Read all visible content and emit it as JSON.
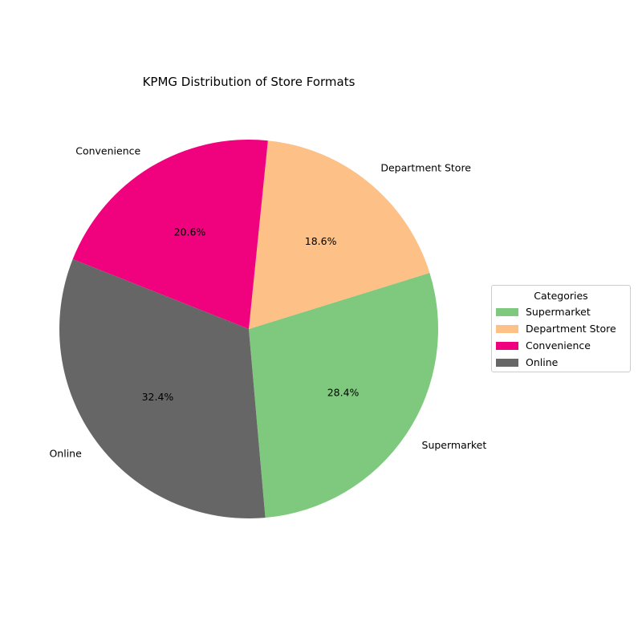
{
  "chart_data": {
    "type": "pie",
    "title": "KPMG Distribution of Store Formats",
    "slices": [
      {
        "label": "Supermarket",
        "value": 28.4,
        "pct_label": "28.4%",
        "color": "#7fc97f"
      },
      {
        "label": "Department Store",
        "value": 18.6,
        "pct_label": "18.6%",
        "color": "#fdc086"
      },
      {
        "label": "Convenience",
        "value": 20.6,
        "pct_label": "20.6%",
        "color": "#f0027f"
      },
      {
        "label": "Online",
        "value": 32.4,
        "pct_label": "32.4%",
        "color": "#666666"
      }
    ],
    "start_angle_deg": -85,
    "direction": "counterclockwise",
    "legend": {
      "title": "Categories",
      "placement": "right"
    }
  }
}
